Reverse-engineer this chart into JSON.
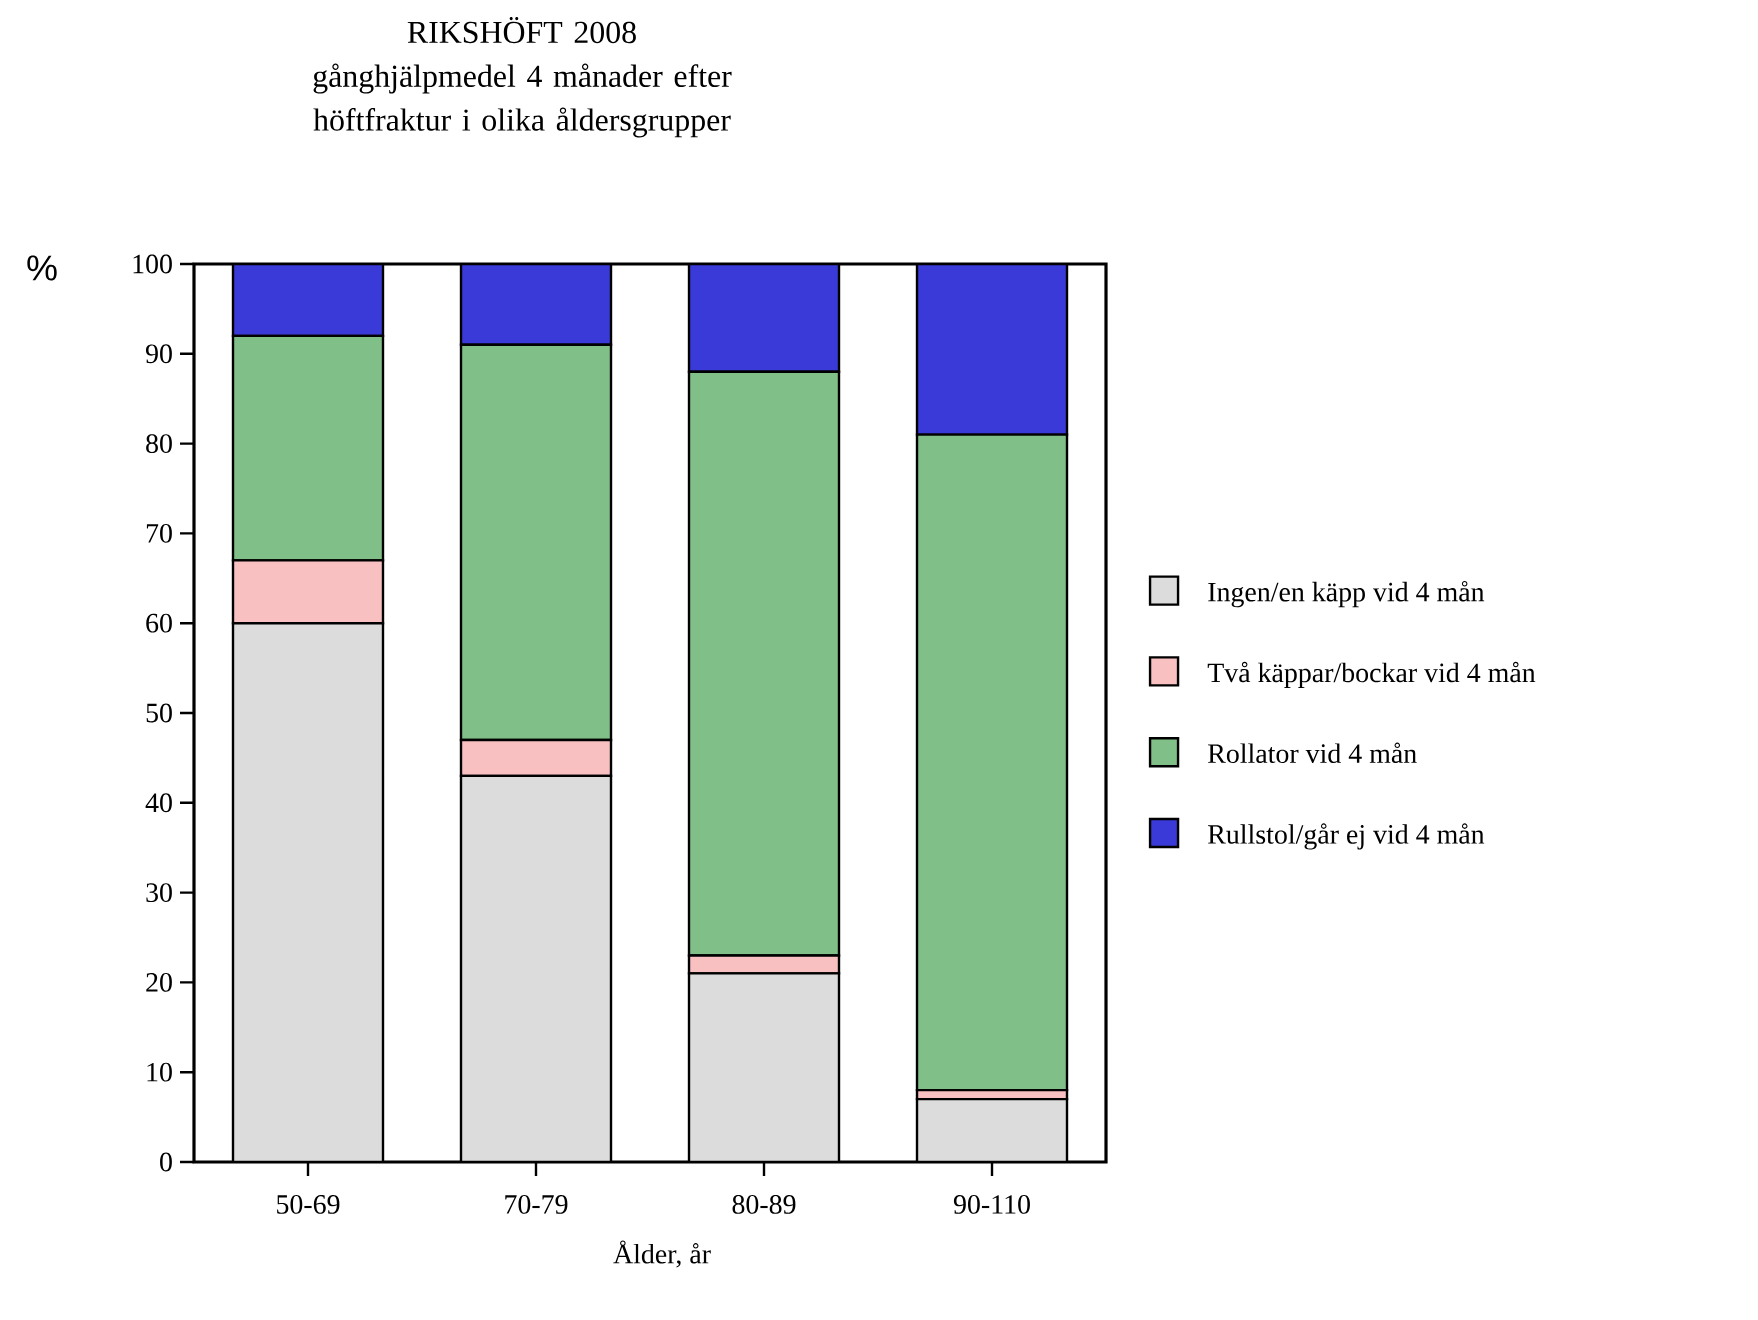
{
  "chart_data": {
    "type": "bar",
    "stacked": true,
    "title": "RIKSHÖFT 2008",
    "subtitle": "gånghjälpmedel 4 månader efter höftfraktur i olika åldersgrupper",
    "xlabel": "Ålder, år",
    "ylabel": "%",
    "categories": [
      "50-69",
      "70-79",
      "80-89",
      "90-110"
    ],
    "series": [
      {
        "name": "Ingen/en  käpp vid 4 mån",
        "color": "#dcdcdc",
        "values": [
          60,
          43,
          21,
          7
        ]
      },
      {
        "name": "Två käppar/bockar vid 4 mån",
        "color": "#f8c0c0",
        "values": [
          7,
          4,
          2,
          1
        ]
      },
      {
        "name": "Rollator vid 4 mån",
        "color": "#80c088",
        "values": [
          25,
          44,
          65,
          73
        ]
      },
      {
        "name": "Rullstol/går ej vid 4 mån",
        "color": "#3a3ad8",
        "values": [
          8,
          9,
          12,
          19
        ]
      }
    ],
    "ylim": [
      0,
      100
    ],
    "yticks": [
      0,
      10,
      20,
      30,
      40,
      50,
      60,
      70,
      80,
      90,
      100
    ],
    "legend": "right",
    "grid": false
  }
}
